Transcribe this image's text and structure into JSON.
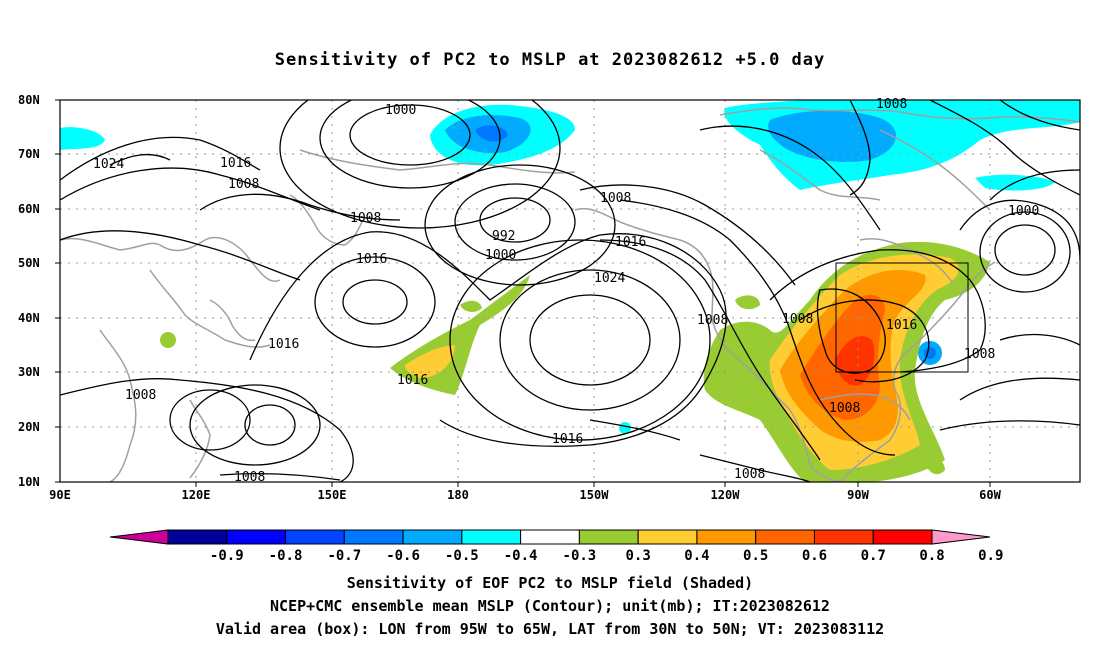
{
  "title": "Sensitivity of PC2 to MSLP at 2023082612 +5.0 day",
  "lat_labels": [
    "80N",
    "70N",
    "60N",
    "50N",
    "40N",
    "30N",
    "20N",
    "10N"
  ],
  "lon_labels": [
    "90E",
    "120E",
    "150E",
    "180",
    "150W",
    "120W",
    "90W",
    "60W"
  ],
  "contour_labels": [
    {
      "text": "1000",
      "id": "a"
    },
    {
      "text": "1008",
      "id": "b"
    },
    {
      "text": "1024",
      "id": "c"
    },
    {
      "text": "1016",
      "id": "d"
    },
    {
      "text": "1008",
      "id": "e"
    },
    {
      "text": "1008",
      "id": "f"
    },
    {
      "text": "992",
      "id": "g"
    },
    {
      "text": "1000",
      "id": "h"
    },
    {
      "text": "1008",
      "id": "i"
    },
    {
      "text": "1016",
      "id": "j"
    },
    {
      "text": "1016",
      "id": "k"
    },
    {
      "text": "1024",
      "id": "l"
    },
    {
      "text": "1000",
      "id": "m"
    },
    {
      "text": "1016",
      "id": "n"
    },
    {
      "text": "1008",
      "id": "o"
    },
    {
      "text": "1016",
      "id": "p"
    },
    {
      "text": "1008",
      "id": "q"
    },
    {
      "text": "1008",
      "id": "r"
    },
    {
      "text": "1016",
      "id": "s"
    },
    {
      "text": "1008",
      "id": "t"
    },
    {
      "text": "1016",
      "id": "u"
    },
    {
      "text": "1008",
      "id": "v"
    },
    {
      "text": "1008",
      "id": "w"
    },
    {
      "text": "1008",
      "id": "x"
    }
  ],
  "colorbar": {
    "labels": [
      "-0.9",
      "-0.8",
      "-0.7",
      "-0.6",
      "-0.5",
      "-0.4",
      "-0.3",
      "0.3",
      "0.4",
      "0.5",
      "0.6",
      "0.7",
      "0.8",
      "0.9"
    ],
    "colors": [
      "#cc0099",
      "#000099",
      "#0000ff",
      "#0044ff",
      "#0077ff",
      "#00aaff",
      "#00ffff",
      "#ffffff",
      "#99cc33",
      "#ffcc33",
      "#ff9900",
      "#ff6600",
      "#ff3300",
      "#ff0000",
      "#ff99cc"
    ]
  },
  "captions": {
    "line1": "Sensitivity of EOF PC2 to MSLP field (Shaded)",
    "line2": "NCEP+CMC ensemble mean MSLP (Contour); unit(mb); IT:2023082612",
    "line3": "Valid area (box): LON from 95W to 65W, LAT from 30N to 50N; VT: 2023083112"
  }
}
